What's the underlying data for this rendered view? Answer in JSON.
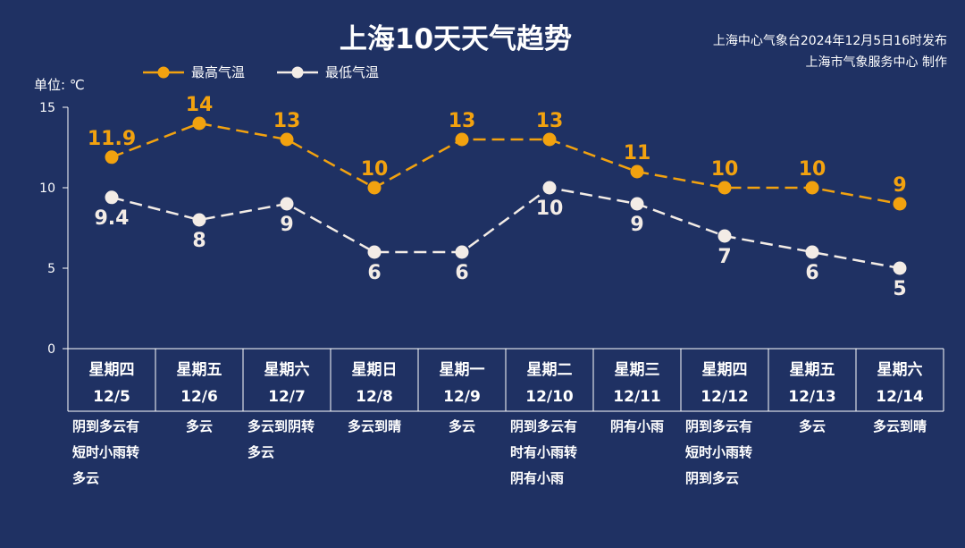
{
  "header": {
    "title": "上海10天天气趋势",
    "issuer_line1": "上海中心气象台2024年12月5日16时发布",
    "issuer_line2": "上海市气象服务中心 制作"
  },
  "legend": {
    "high_label": "最高气温",
    "low_label": "最低气温"
  },
  "unit_label": "单位: ℃",
  "colors": {
    "background": "#1f3163",
    "high": "#f2a20f",
    "low": "#f3ece6",
    "axis": "#ffffff"
  },
  "chart_data": {
    "type": "line",
    "ylim": [
      0,
      15
    ],
    "yticks": [
      "0",
      "5",
      "10",
      "15"
    ],
    "categories": [
      "12/5",
      "12/6",
      "12/7",
      "12/8",
      "12/9",
      "12/10",
      "12/11",
      "12/12",
      "12/13",
      "12/14"
    ],
    "weekdays": [
      "星期四",
      "星期五",
      "星期六",
      "星期日",
      "星期一",
      "星期二",
      "星期三",
      "星期四",
      "星期五",
      "星期六"
    ],
    "series": [
      {
        "name": "最高气温",
        "values": [
          11.9,
          14,
          13,
          10,
          13,
          13,
          11,
          10,
          10,
          9
        ],
        "labels": [
          "11.9",
          "14",
          "13",
          "10",
          "13",
          "13",
          "11",
          "10",
          "10",
          "9"
        ]
      },
      {
        "name": "最低气温",
        "values": [
          9.4,
          8,
          9,
          6,
          6,
          10,
          9,
          7,
          6,
          5
        ],
        "labels": [
          "9.4",
          "8",
          "9",
          "6",
          "6",
          "10",
          "9",
          "7",
          "6",
          "5"
        ]
      }
    ],
    "descriptions": [
      [
        "阴到多云有",
        "短时小雨转",
        "多云"
      ],
      [
        "多云"
      ],
      [
        "多云到阴转",
        "多云"
      ],
      [
        "多云到晴"
      ],
      [
        "多云"
      ],
      [
        "阴到多云有",
        "时有小雨转",
        "阴有小雨"
      ],
      [
        "阴有小雨"
      ],
      [
        "阴到多云有",
        "短时小雨转",
        "阴到多云"
      ],
      [
        "多云"
      ],
      [
        "多云到晴"
      ]
    ]
  }
}
